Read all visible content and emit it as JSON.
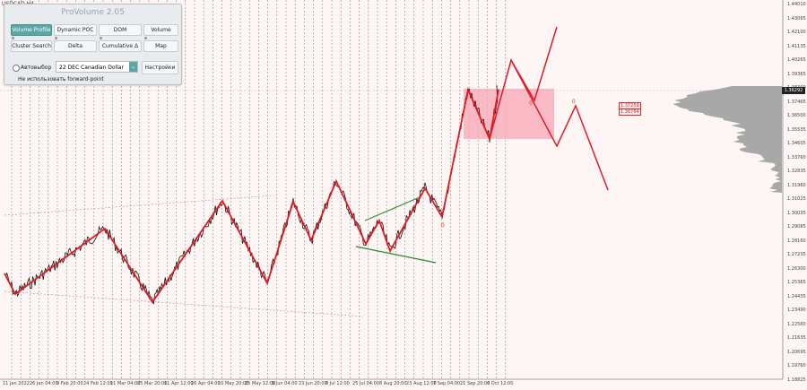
{
  "symbol": "USDCAD,H4",
  "panel": {
    "title": "ProVolume 2.05",
    "buttons": [
      "Volume Profile",
      "Dynamic POC",
      "DOM",
      "Volume",
      "Cluster Search",
      "Delta",
      "Cumulative Δ",
      "Map"
    ],
    "active_button": "Volume Profile",
    "auto_label": "Автовыбор",
    "instrument": "22 DEC Canadian Dollar",
    "settings_label": "Настройки",
    "forward_point_label": "Не использовать forward-point"
  },
  "current_price": "1.36292",
  "zone_labels": [
    "1.37259",
    "1.36764"
  ],
  "marker_zero": "0",
  "y_axis": [
    "1.44010",
    "1.43065",
    "1.42100",
    "1.41135",
    "1.40265",
    "1.39365",
    "1.38300",
    "1.37465",
    "1.36500",
    "1.35535",
    "1.34605",
    "1.33760",
    "1.32835",
    "1.31960",
    "1.31025",
    "1.30035",
    "1.29085",
    "1.28160",
    "1.27235",
    "1.26300",
    "1.25365",
    "1.24435",
    "1.23490",
    "1.22560",
    "1.21635",
    "1.20695",
    "1.19760",
    "1.18825"
  ],
  "x_axis": [
    "11 Jan 2022",
    "26 Jan 04:00",
    "9 Feb 20:00",
    "24 Feb 12:00",
    "11 Mar 04:00",
    "25 Mar 20:00",
    "11 Apr 12:00",
    "26 Apr 04:00",
    "10 May 20:00",
    "25 May 12:00",
    "9 Jun 04:00",
    "23 Jun 20:00",
    "8 Jul 12:00",
    "25 Jul 04:00",
    "8 Aug 20:00",
    "23 Aug 12:00",
    "7 Sep 04:00",
    "21 Sep 20:00",
    "6 Oct 12:00"
  ],
  "colors": {
    "background": "#fdf6f4",
    "wave": "#e01b24",
    "zone": "#f7a6b6",
    "triangle": "#2e8b2e",
    "profile": "#9a9a9a"
  }
}
